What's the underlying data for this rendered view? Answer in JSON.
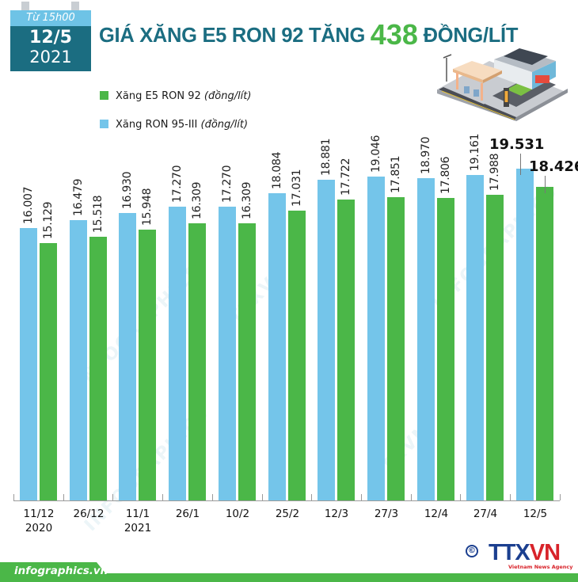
{
  "calendar": {
    "time_label": "Từ 15h00",
    "day": "12/5",
    "year": "2021"
  },
  "title": {
    "prefix": "GIÁ XĂNG E5 RON 92 TĂNG",
    "highlight": "438",
    "suffix": "ĐỒNG/LÍT"
  },
  "legend": [
    {
      "label": "Xăng E5 RON 92",
      "unit": "(đồng/lít)",
      "color": "#4bb748"
    },
    {
      "label": "Xăng RON 95-III",
      "unit": "(đồng/lít)",
      "color": "#74c5ea"
    }
  ],
  "illustration": {
    "icon": "gas-station-icon"
  },
  "chart_data": {
    "type": "bar",
    "title": "GIÁ XĂNG E5 RON 92 TĂNG 438 ĐỒNG/LÍT",
    "xlabel": "",
    "ylabel": "đồng/lít",
    "categories": [
      "11/12 2020",
      "26/12",
      "11/1 2021",
      "26/1",
      "10/2",
      "25/2",
      "12/3",
      "27/3",
      "12/4",
      "27/4",
      "12/5"
    ],
    "series": [
      {
        "name": "Xăng RON 95-III (đồng/lít)",
        "color": "#74c5ea",
        "values": [
          16007,
          16479,
          16930,
          17270,
          17270,
          18084,
          18881,
          19046,
          18970,
          19161,
          19531
        ],
        "labels": [
          "16.007",
          "16.479",
          "16.930",
          "17.270",
          "17.270",
          "18.084",
          "18.881",
          "19.046",
          "18.970",
          "19.161",
          "19.531"
        ]
      },
      {
        "name": "Xăng E5 RON 92 (đồng/lít)",
        "color": "#4bb748",
        "values": [
          15129,
          15518,
          15948,
          16309,
          16309,
          17031,
          17722,
          17851,
          17806,
          17988,
          18426
        ],
        "labels": [
          "15.129",
          "15.518",
          "15.948",
          "16.309",
          "16.309",
          "17.031",
          "17.722",
          "17.851",
          "17.806",
          "17.988",
          "18.426"
        ]
      }
    ],
    "ylim": [
      0,
      20000
    ],
    "grid": false,
    "legend_position": "top-left",
    "highlight_last": true
  },
  "xaxis": [
    {
      "line1": "11/12",
      "line2": "2020"
    },
    {
      "line1": "26/12",
      "line2": ""
    },
    {
      "line1": "11/1",
      "line2": "2021"
    },
    {
      "line1": "26/1",
      "line2": ""
    },
    {
      "line1": "10/2",
      "line2": ""
    },
    {
      "line1": "25/2",
      "line2": ""
    },
    {
      "line1": "12/3",
      "line2": ""
    },
    {
      "line1": "27/3",
      "line2": ""
    },
    {
      "line1": "12/4",
      "line2": ""
    },
    {
      "line1": "27/4",
      "line2": ""
    },
    {
      "line1": "12/5",
      "line2": ""
    }
  ],
  "watermarks": [
    "INFOGRAPHICS",
    "TTXVN",
    "INFOGRAPHICS",
    "TTXVN",
    "INFOGRAPHICS"
  ],
  "footer": {
    "site": "infographics.vn",
    "copyright_symbol": "©",
    "logo_text_a": "TTX",
    "logo_text_b": "VN",
    "logo_subtitle": "Vietnam News Agency"
  }
}
